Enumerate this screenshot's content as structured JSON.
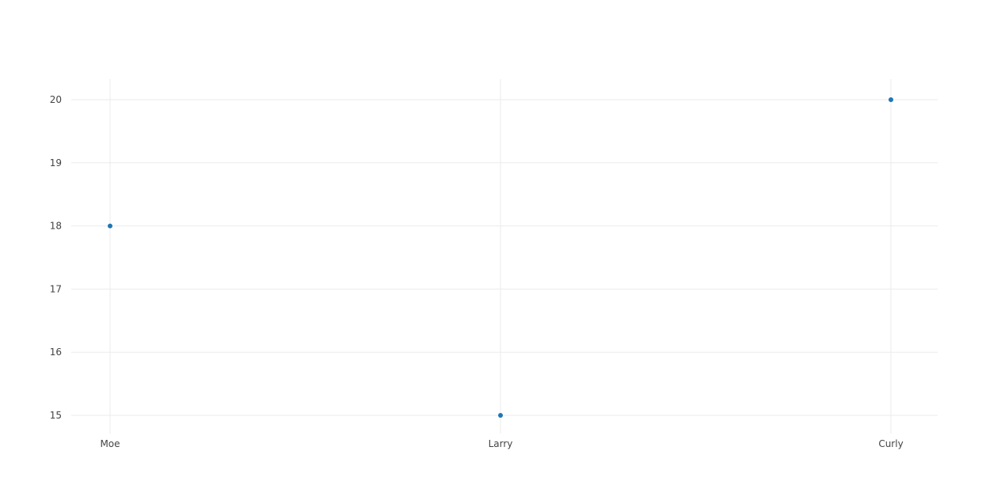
{
  "chart_data": {
    "type": "scatter",
    "categories": [
      "Moe",
      "Larry",
      "Curly"
    ],
    "series": [
      {
        "values": [
          18,
          15,
          20
        ],
        "color": "#1f77b4"
      }
    ],
    "yticks": [
      15,
      16,
      17,
      18,
      19,
      20
    ],
    "ylim": [
      14.7,
      20.3
    ],
    "grid": true,
    "grid_color": "#ebebeb",
    "background": "#ffffff",
    "legend": "none"
  }
}
